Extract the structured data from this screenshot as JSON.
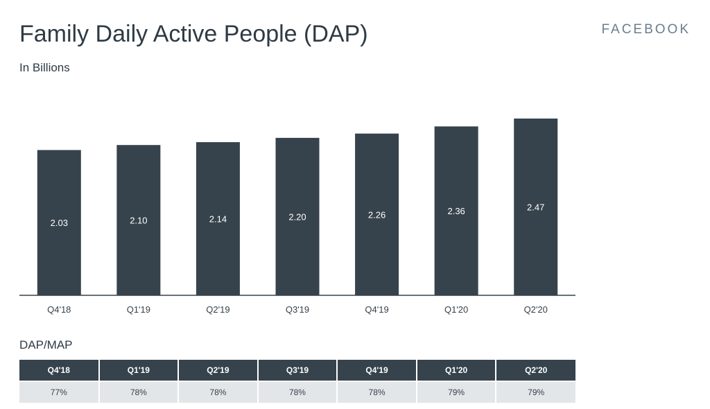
{
  "header": {
    "title": "Family Daily Active People (DAP)",
    "subtitle": "In Billions",
    "brand": "FACEBOOK"
  },
  "chart_data": {
    "type": "bar",
    "title": "Family Daily Active People (DAP)",
    "subtitle": "In Billions",
    "categories": [
      "Q4'18",
      "Q1'19",
      "Q2'19",
      "Q3'19",
      "Q4'19",
      "Q1'20",
      "Q2'20"
    ],
    "values": [
      2.03,
      2.1,
      2.14,
      2.2,
      2.26,
      2.36,
      2.47
    ],
    "value_labels": [
      "2.03",
      "2.10",
      "2.14",
      "2.20",
      "2.26",
      "2.36",
      "2.47"
    ],
    "xlabel": "",
    "ylabel": "",
    "ylim": [
      0,
      2.47
    ],
    "bar_color": "#36434c",
    "label_color": "#ffffff",
    "grid": false,
    "legend": "none"
  },
  "dap_map_table": {
    "title": "DAP/MAP",
    "headers": [
      "Q4'18",
      "Q1'19",
      "Q2'19",
      "Q3'19",
      "Q4'19",
      "Q1'20",
      "Q2'20"
    ],
    "values": [
      "77%",
      "78%",
      "78%",
      "78%",
      "78%",
      "79%",
      "79%"
    ],
    "header_color": "#36434c",
    "row_color": "#e3e6e9"
  }
}
